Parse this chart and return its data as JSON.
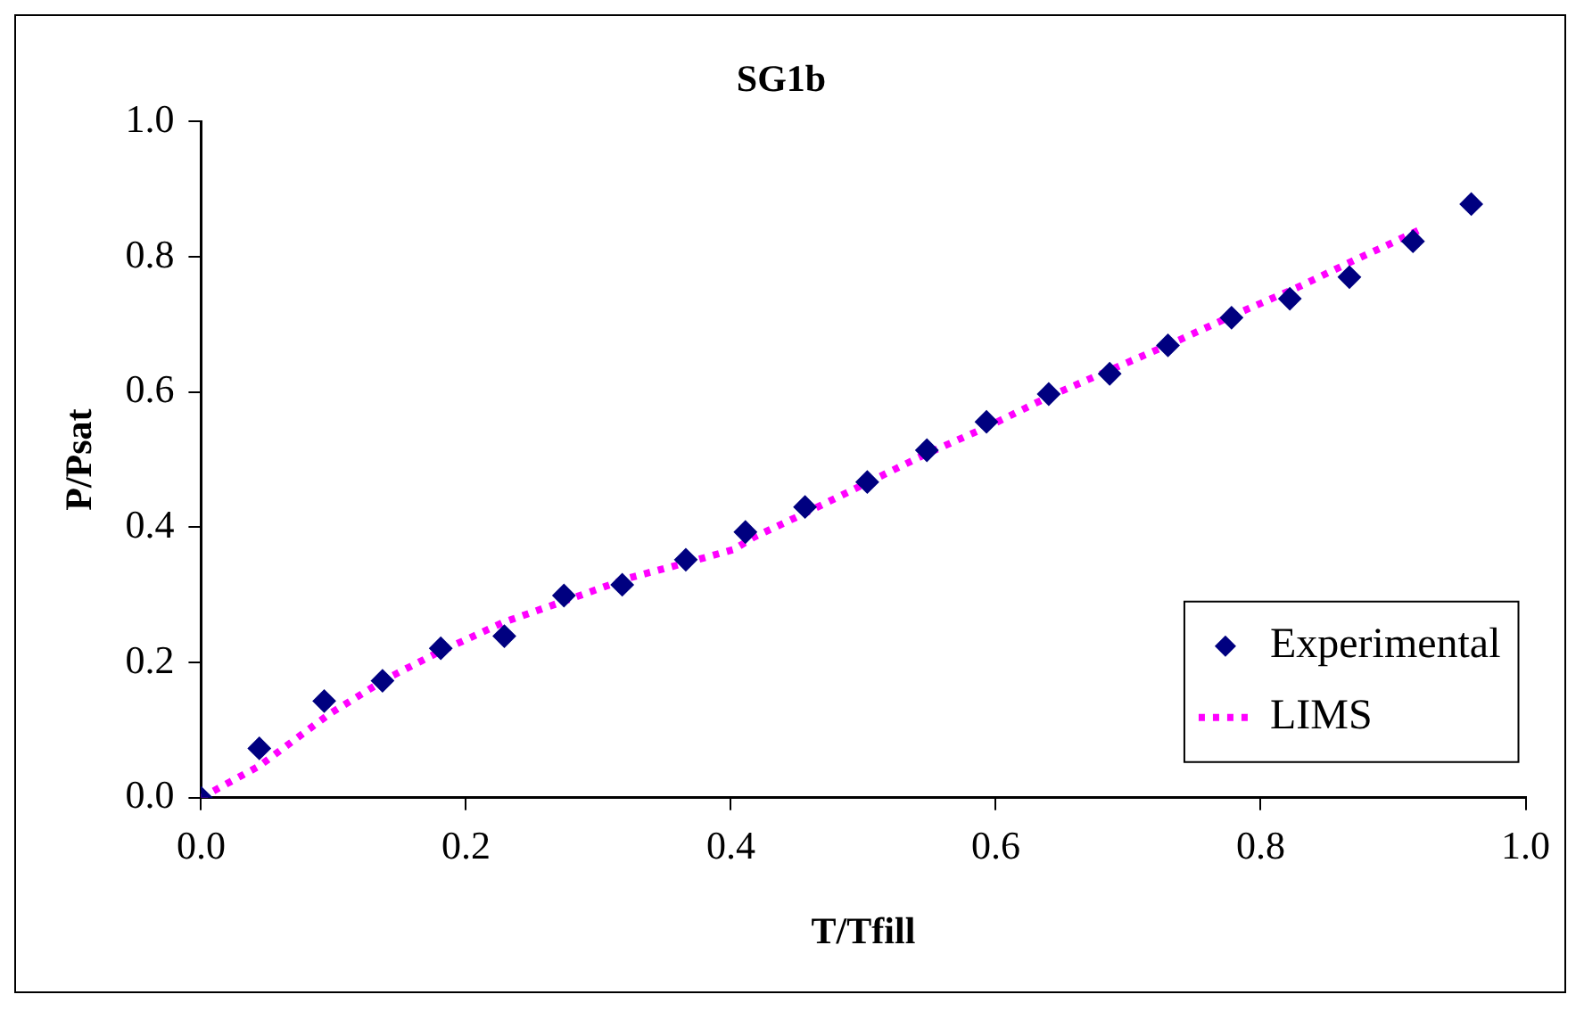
{
  "chart_data": {
    "type": "scatter",
    "title": "SG1b",
    "xlabel": "T/Tfill",
    "ylabel": "P/Psat",
    "xlim": [
      0,
      1
    ],
    "xticks": [
      {
        "value": 0,
        "label": "0.0"
      },
      0.2,
      0.4,
      0.6,
      0.8,
      {
        "value": 1,
        "label": "1.0"
      }
    ],
    "ylim": [
      0,
      1
    ],
    "yticks": [
      {
        "value": 0,
        "label": "0.0"
      },
      0.2,
      0.4,
      0.6,
      0.8,
      {
        "value": 1,
        "label": "1.0"
      }
    ],
    "grid": false,
    "legend": "bottom right",
    "series": [
      {
        "name": "Experimental",
        "type": "scatter",
        "marker": "diamond",
        "color": "#000080",
        "x": [
          0,
          0.044,
          0.093,
          0.137,
          0.181,
          0.229,
          0.274,
          0.318,
          0.366,
          0.411,
          0.456,
          0.503,
          0.548,
          0.593,
          0.64,
          0.686,
          0.73,
          0.778,
          0.822,
          0.867,
          0.915,
          0.959
        ],
        "values": [
          0,
          0.073,
          0.143,
          0.173,
          0.221,
          0.239,
          0.299,
          0.315,
          0.352,
          0.393,
          0.43,
          0.467,
          0.514,
          0.556,
          0.597,
          0.627,
          0.669,
          0.71,
          0.738,
          0.77,
          0.823,
          0.878
        ]
      },
      {
        "name": "LIMS",
        "type": "line",
        "marker": "none",
        "line_style": "dotted",
        "color": "#ff00ff",
        "x": [
          0,
          0.044,
          0.097,
          0.14,
          0.178,
          0.229,
          0.273,
          0.323,
          0.371,
          0.402,
          0.417,
          0.455,
          0.501,
          0.548,
          0.594,
          0.641,
          0.688,
          0.734,
          0.781,
          0.828,
          0.874,
          0.893,
          0.92
        ],
        "values": [
          0,
          0.047,
          0.124,
          0.176,
          0.214,
          0.26,
          0.29,
          0.325,
          0.35,
          0.367,
          0.385,
          0.42,
          0.464,
          0.509,
          0.549,
          0.594,
          0.634,
          0.673,
          0.715,
          0.755,
          0.798,
          0.815,
          0.84
        ]
      }
    ]
  }
}
